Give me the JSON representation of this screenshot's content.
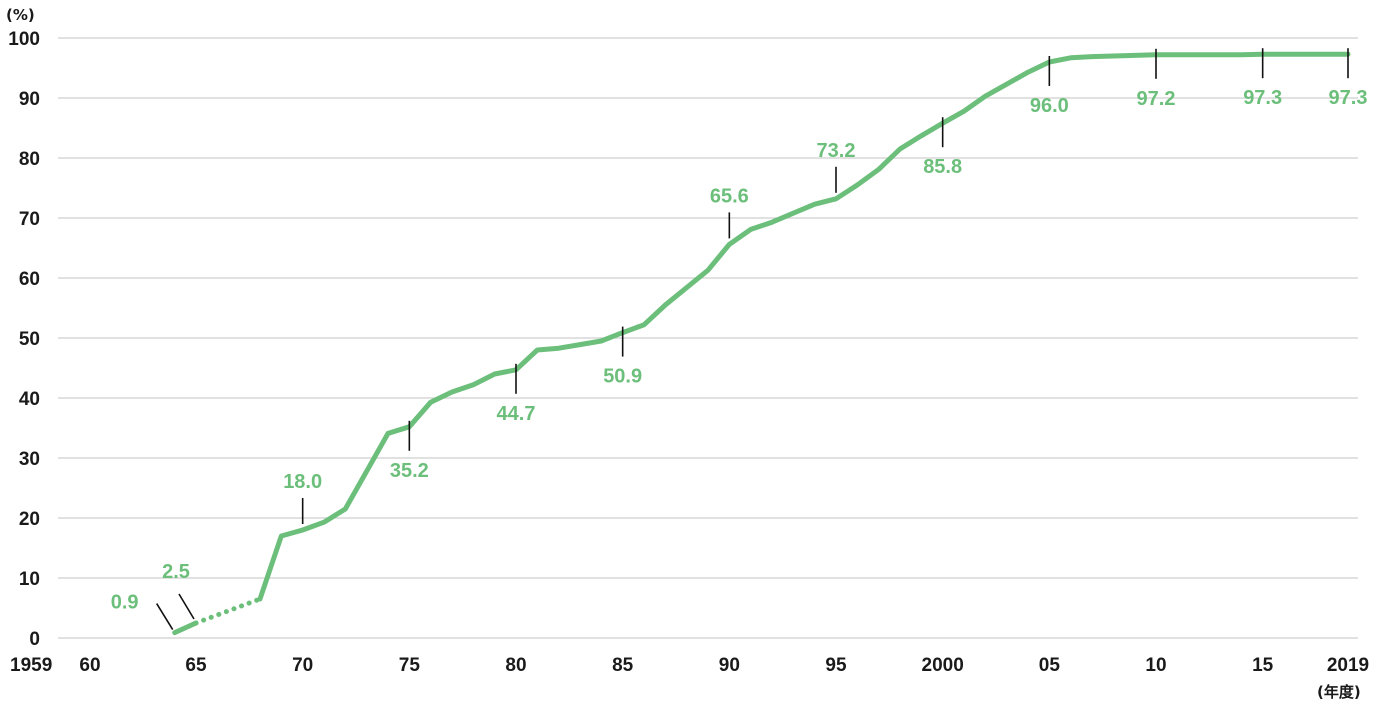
{
  "chart_data": {
    "type": "line",
    "title": "",
    "ylabel": "(%)",
    "xlabel": "(年度)",
    "ylim": [
      0,
      100
    ],
    "xlim": [
      1959,
      2019
    ],
    "y_ticks": [
      {
        "value": 0,
        "label": "0"
      },
      {
        "value": 10,
        "label": "10"
      },
      {
        "value": 20,
        "label": "20"
      },
      {
        "value": 30,
        "label": "30"
      },
      {
        "value": 40,
        "label": "40"
      },
      {
        "value": 50,
        "label": "50"
      },
      {
        "value": 60,
        "label": "60"
      },
      {
        "value": 70,
        "label": "70"
      },
      {
        "value": 80,
        "label": "80"
      },
      {
        "value": 90,
        "label": "90"
      },
      {
        "value": 100,
        "label": "100"
      }
    ],
    "x_ticks": [
      {
        "value": 1959,
        "label": "1959"
      },
      {
        "value": 1960,
        "label": "60"
      },
      {
        "value": 1965,
        "label": "65"
      },
      {
        "value": 1970,
        "label": "70"
      },
      {
        "value": 1975,
        "label": "75"
      },
      {
        "value": 1980,
        "label": "80"
      },
      {
        "value": 1985,
        "label": "85"
      },
      {
        "value": 1990,
        "label": "90"
      },
      {
        "value": 1995,
        "label": "95"
      },
      {
        "value": 2000,
        "label": "2000"
      },
      {
        "value": 2005,
        "label": "05"
      },
      {
        "value": 2010,
        "label": "10"
      },
      {
        "value": 2015,
        "label": "15"
      },
      {
        "value": 2019,
        "label": "2019"
      }
    ],
    "grid": true,
    "line_color": "#6cbf7b",
    "label_color": "#6cbf7b",
    "series": [
      {
        "segments": [
          {
            "style": "solid",
            "x": [
              1964,
              1965
            ],
            "y": [
              0.9,
              2.5
            ]
          },
          {
            "style": "dotted",
            "x": [
              1965,
              1968
            ],
            "y": [
              2.5,
              6.5
            ]
          },
          {
            "style": "solid",
            "x": [
              1968,
              1969,
              1970,
              1971,
              1972,
              1973,
              1974,
              1975,
              1976,
              1977,
              1978,
              1979,
              1980,
              1981,
              1982,
              1983,
              1984,
              1985,
              1986,
              1987,
              1988,
              1989,
              1990,
              1991,
              1992,
              1993,
              1994,
              1995,
              1996,
              1997,
              1998,
              1999,
              2000,
              2001,
              2002,
              2003,
              2004,
              2005,
              2006,
              2007,
              2008,
              2009,
              2010,
              2011,
              2012,
              2013,
              2014,
              2015,
              2016,
              2017,
              2018,
              2019
            ],
            "y": [
              6.5,
              17.0,
              18.0,
              19.3,
              21.5,
              27.8,
              34.1,
              35.2,
              39.3,
              41.0,
              42.2,
              44.0,
              44.7,
              48.0,
              48.3,
              48.9,
              49.5,
              50.9,
              52.2,
              55.5,
              58.4,
              61.3,
              65.6,
              68.1,
              69.3,
              70.8,
              72.3,
              73.2,
              75.5,
              78.1,
              81.5,
              83.7,
              85.8,
              87.8,
              90.3,
              92.3,
              94.3,
              96.0,
              96.7,
              96.9,
              97.0,
              97.1,
              97.2,
              97.2,
              97.2,
              97.2,
              97.2,
              97.3,
              97.3,
              97.3,
              97.3,
              97.3
            ]
          }
        ]
      }
    ],
    "annotations": [
      {
        "x": 1964,
        "y": 0.9,
        "label": "0.9",
        "side": "diag-left"
      },
      {
        "x": 1965,
        "y": 2.5,
        "label": "2.5",
        "side": "diag-up"
      },
      {
        "x": 1970,
        "y": 18.0,
        "label": "18.0",
        "side": "above"
      },
      {
        "x": 1975,
        "y": 35.2,
        "label": "35.2",
        "side": "below"
      },
      {
        "x": 1980,
        "y": 44.7,
        "label": "44.7",
        "side": "below"
      },
      {
        "x": 1985,
        "y": 50.9,
        "label": "50.9",
        "side": "below"
      },
      {
        "x": 1990,
        "y": 65.6,
        "label": "65.6",
        "side": "above"
      },
      {
        "x": 1995,
        "y": 73.2,
        "label": "73.2",
        "side": "above"
      },
      {
        "x": 2000,
        "y": 85.8,
        "label": "85.8",
        "side": "below"
      },
      {
        "x": 2005,
        "y": 96.0,
        "label": "96.0",
        "side": "below"
      },
      {
        "x": 2010,
        "y": 97.2,
        "label": "97.2",
        "side": "below"
      },
      {
        "x": 2015,
        "y": 97.3,
        "label": "97.3",
        "side": "below"
      },
      {
        "x": 2019,
        "y": 97.3,
        "label": "97.3",
        "side": "below"
      }
    ]
  }
}
